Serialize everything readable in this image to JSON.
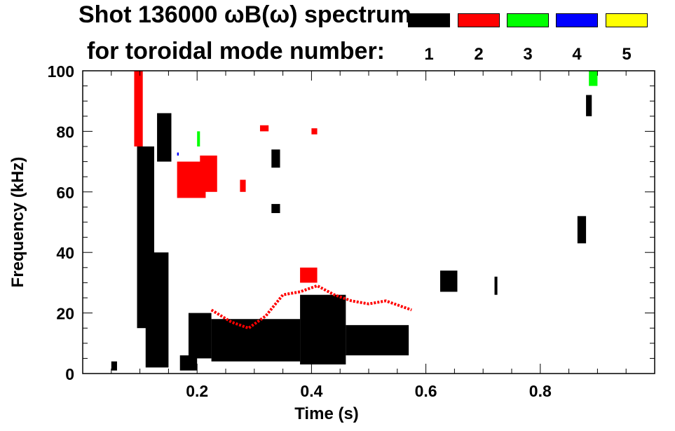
{
  "header": {
    "title_line1": "Shot 136000 ωB(ω) spectrum",
    "title_line2": "for toroidal mode number:"
  },
  "legend": {
    "modes": [
      {
        "label": "1",
        "color": "#000000"
      },
      {
        "label": "2",
        "color": "#ff0000"
      },
      {
        "label": "3",
        "color": "#00ff00"
      },
      {
        "label": "4",
        "color": "#0000ff"
      },
      {
        "label": "5",
        "color": "#ffff00"
      }
    ]
  },
  "chart_data": {
    "type": "heatmap",
    "title": "Shot 136000 ωB(ω) spectrum",
    "xlabel": "Time (s)",
    "ylabel": "Frequency (kHz)",
    "xlim": [
      0,
      1.0
    ],
    "ylim": [
      0,
      100
    ],
    "xticks": [
      0.2,
      0.4,
      0.6,
      0.8
    ],
    "xtick_labels": [
      "0.2",
      "0.4",
      "0.6",
      "0.8"
    ],
    "yticks": [
      0,
      20,
      40,
      60,
      80,
      100
    ],
    "ytick_labels": [
      "0",
      "20",
      "40",
      "60",
      "80",
      "100"
    ],
    "grid": false,
    "legend_position": "top-right",
    "series": [
      {
        "name": "1",
        "color": "#000000",
        "regions": [
          {
            "t0": 0.05,
            "t1": 0.06,
            "f0": 1,
            "f1": 4
          },
          {
            "t0": 0.095,
            "t1": 0.125,
            "f0": 15,
            "f1": 75
          },
          {
            "t0": 0.11,
            "t1": 0.15,
            "f0": 2,
            "f1": 40
          },
          {
            "t0": 0.13,
            "t1": 0.155,
            "f0": 70,
            "f1": 86
          },
          {
            "t0": 0.17,
            "t1": 0.2,
            "f0": 1,
            "f1": 6
          },
          {
            "t0": 0.185,
            "t1": 0.225,
            "f0": 5,
            "f1": 20
          },
          {
            "t0": 0.225,
            "t1": 0.38,
            "f0": 4,
            "f1": 18
          },
          {
            "t0": 0.33,
            "t1": 0.345,
            "f0": 68,
            "f1": 74
          },
          {
            "t0": 0.33,
            "t1": 0.345,
            "f0": 53,
            "f1": 56
          },
          {
            "t0": 0.38,
            "t1": 0.46,
            "f0": 3,
            "f1": 26
          },
          {
            "t0": 0.46,
            "t1": 0.57,
            "f0": 6,
            "f1": 16
          },
          {
            "t0": 0.625,
            "t1": 0.655,
            "f0": 27,
            "f1": 34
          },
          {
            "t0": 0.72,
            "t1": 0.725,
            "f0": 26,
            "f1": 32
          },
          {
            "t0": 0.865,
            "t1": 0.88,
            "f0": 43,
            "f1": 52
          },
          {
            "t0": 0.88,
            "t1": 0.89,
            "f0": 85,
            "f1": 92
          }
        ]
      },
      {
        "name": "2",
        "color": "#ff0000",
        "regions": [
          {
            "t0": 0.09,
            "t1": 0.105,
            "f0": 75,
            "f1": 100
          },
          {
            "t0": 0.165,
            "t1": 0.215,
            "f0": 58,
            "f1": 70
          },
          {
            "t0": 0.205,
            "t1": 0.235,
            "f0": 60,
            "f1": 72
          },
          {
            "t0": 0.275,
            "t1": 0.285,
            "f0": 60,
            "f1": 64
          },
          {
            "t0": 0.31,
            "t1": 0.325,
            "f0": 80,
            "f1": 82
          },
          {
            "t0": 0.4,
            "t1": 0.41,
            "f0": 79,
            "f1": 81
          },
          {
            "t0": 0.38,
            "t1": 0.41,
            "f0": 30,
            "f1": 35
          }
        ],
        "curve": {
          "t": [
            0.225,
            0.26,
            0.29,
            0.32,
            0.35,
            0.38,
            0.41,
            0.44,
            0.47,
            0.5,
            0.53,
            0.56,
            0.575
          ],
          "f": [
            21,
            17,
            15,
            19,
            26,
            27,
            29,
            26,
            24,
            23,
            24,
            22,
            21
          ]
        }
      },
      {
        "name": "3",
        "color": "#00ff00",
        "regions": [
          {
            "t0": 0.2,
            "t1": 0.205,
            "f0": 75,
            "f1": 80
          },
          {
            "t0": 0.885,
            "t1": 0.9,
            "f0": 95,
            "f1": 100
          }
        ]
      },
      {
        "name": "4",
        "color": "#0000ff",
        "regions": [
          {
            "t0": 0.165,
            "t1": 0.168,
            "f0": 72,
            "f1": 73
          }
        ]
      },
      {
        "name": "5",
        "color": "#ffff00",
        "regions": []
      }
    ]
  }
}
